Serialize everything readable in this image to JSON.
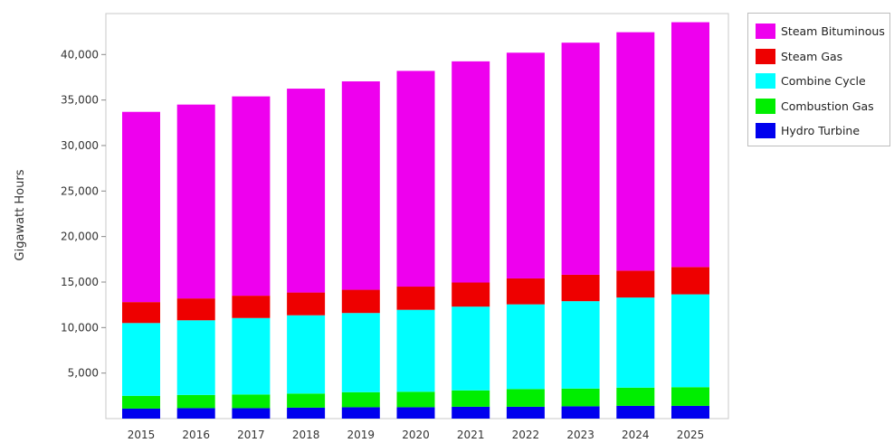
{
  "chart_data": {
    "type": "bar",
    "stacked": true,
    "ylabel": "Gigawatt Hours",
    "ylim": [
      0,
      44500
    ],
    "yticks": [
      5000,
      10000,
      15000,
      20000,
      25000,
      30000,
      35000,
      40000
    ],
    "ytick_labels": [
      "5,000",
      "10,000",
      "15,000",
      "20,000",
      "25,000",
      "30,000",
      "35,000",
      "40,000"
    ],
    "categories": [
      "2015",
      "2016",
      "2017",
      "2018",
      "2019",
      "2020",
      "2021",
      "2022",
      "2023",
      "2024",
      "2025"
    ],
    "series": [
      {
        "name": "Hydro Turbine",
        "color": "#0000ee",
        "values": [
          1100,
          1150,
          1150,
          1200,
          1250,
          1250,
          1300,
          1300,
          1350,
          1400,
          1400
        ]
      },
      {
        "name": "Combustion Gas",
        "color": "#00ee00",
        "values": [
          1400,
          1450,
          1500,
          1550,
          1650,
          1700,
          1800,
          1950,
          1950,
          2000,
          2050
        ]
      },
      {
        "name": "Combine Cycle",
        "color": "#00ffff",
        "values": [
          8000,
          8200,
          8400,
          8600,
          8700,
          9000,
          9200,
          9300,
          9600,
          9900,
          10200
        ]
      },
      {
        "name": "Steam Gas",
        "color": "#ee0000",
        "values": [
          2300,
          2400,
          2450,
          2500,
          2550,
          2550,
          2650,
          2850,
          2900,
          2950,
          3000
        ]
      },
      {
        "name": "Steam Bituminous",
        "color": "#ee00ee",
        "values": [
          20900,
          21300,
          21900,
          22400,
          22900,
          23700,
          24300,
          24800,
          25500,
          26200,
          26900
        ]
      }
    ],
    "legend_position": "top-right",
    "grid": false
  },
  "legend": {
    "items": [
      {
        "label": "Steam Bituminous",
        "color": "#ee00ee"
      },
      {
        "label": "Steam Gas",
        "color": "#ee0000"
      },
      {
        "label": "Combine Cycle",
        "color": "#00ffff"
      },
      {
        "label": "Combustion Gas",
        "color": "#00ee00"
      },
      {
        "label": "Hydro Turbine",
        "color": "#0000ee"
      }
    ]
  }
}
